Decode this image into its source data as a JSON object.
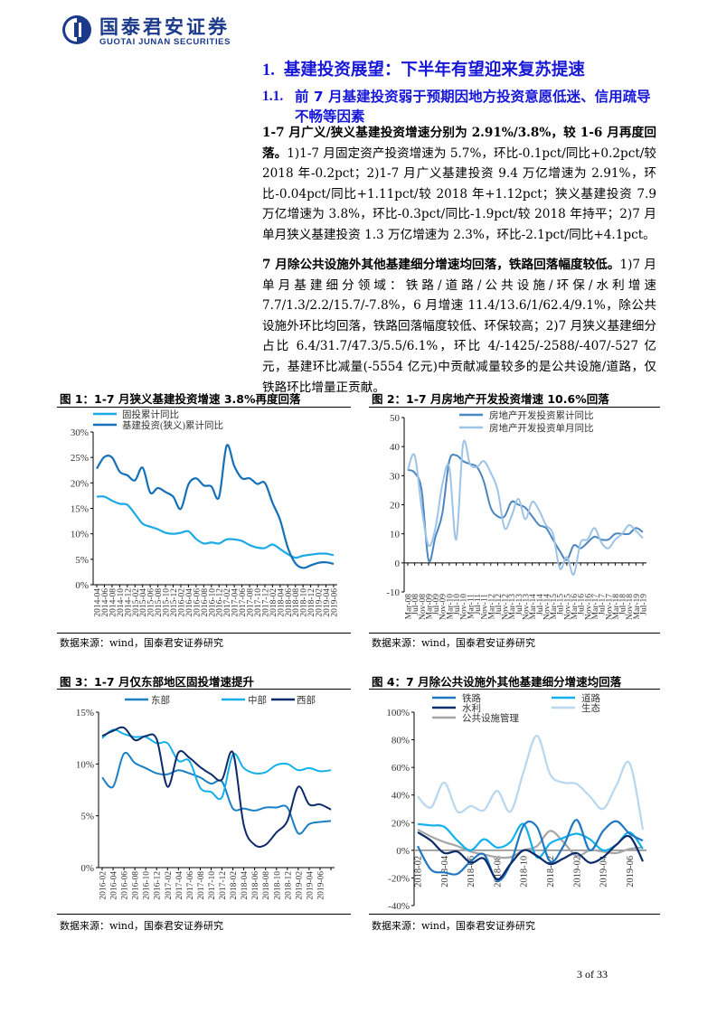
{
  "header": {
    "logo_cn": "国泰君安证券",
    "logo_en": "GUOTAI JUNAN SECURITIES",
    "brand_color": "#1b3a8c"
  },
  "section": {
    "number": "1.",
    "title": "基建投资展望：下半年有望迎来复苏提速"
  },
  "subsection": {
    "number": "1.1.",
    "title": "前 7 月基建投资弱于预期因地方投资意愿低迷、信用疏导不畅等因素"
  },
  "paragraphs": [
    {
      "lead": "1-7 月广义/狭义基建投资增速分别为 2.91%/3.8%，较 1-6 月再度回落。",
      "body": "1)1-7 月固定资产投资增速为 5.7%，环比-0.1pct/同比+0.2pct/较 2018 年-0.2pct；2)1-7 月广义基建投资 9.4 万亿增速为 2.91%，环比-0.04pct/同比+1.11pct/较 2018 年+1.12pct；狭义基建投资 7.9 万亿增速为 3.8%，环比-0.3pct/同比-1.9pct/较 2018 年持平；2)7 月单月狭义基建投资 1.3 万亿增速为 2.3%，环比-2.1pct/同比+4.1pct。"
    },
    {
      "lead": "7 月除公共设施外其他基建细分增速均回落，铁路回落幅度较低。",
      "body": "1)7 月单月基建细分领域：铁路/道路/公共设施/环保/水利增速 7.7/1.3/2.2/15.7/-7.8%，6 月增速 11.4/13.6/1/62.4/9.1%，除公共设施外环比均回落，铁路回落幅度较低、环保较高；2)7 月狭义基建细分占比 6.4/31.7/47.3/5.5/6.1%，环比 4/-1425/-2588/-407/-527 亿元，基建环比减量(-5554 亿元)中贡献减量较多的是公共设施/道路，仅铁路环比增量正贡献。"
    }
  ],
  "chart_data": [
    {
      "type": "line",
      "title": "图 1：1-7 月狭义基建投资增速 3.8%再度回落",
      "source": "数据来源：wind，国泰君安证券研究",
      "x": [
        "2014-04",
        "2014-06",
        "2014-08",
        "2014-10",
        "2014-12",
        "2015-02",
        "2015-04",
        "2015-06",
        "2015-08",
        "2015-10",
        "2015-12",
        "2016-02",
        "2016-04",
        "2016-06",
        "2016-08",
        "2016-10",
        "2016-12",
        "2017-02",
        "2017-04",
        "2017-06",
        "2017-08",
        "2017-10",
        "2017-12",
        "2018-02",
        "2018-04",
        "2018-06",
        "2018-08",
        "2018-10",
        "2018-12",
        "2019-02",
        "2019-04",
        "2019-06"
      ],
      "tick_labels": [
        "2014-04",
        "2014-06",
        "2014-08",
        "2014-10",
        "2014-12",
        "2015-02",
        "2015-04",
        "2015-06",
        "2015-08",
        "2015-10",
        "2015-12",
        "2016-02",
        "2016-04",
        "2016-06",
        "2016-08",
        "2016-10",
        "2016-12",
        "2017-02",
        "2017-04",
        "2017-06",
        "2017-08",
        "2017-10",
        "2017-12",
        "2018-02",
        "2018-04",
        "2018-06",
        "2018-08",
        "2018-10",
        "2018-12",
        "2019-02",
        "2019-04",
        "2019-06"
      ],
      "ylim": [
        0,
        30
      ],
      "yticks": [
        0,
        5,
        10,
        15,
        20,
        25,
        30
      ],
      "yunit": "%",
      "legend": "top",
      "series": [
        {
          "name": "固投累计同比",
          "color": "#1ca9e6",
          "values": [
            17.3,
            17.3,
            16.5,
            15.9,
            15.7,
            13.9,
            12.0,
            11.4,
            10.9,
            10.2,
            10.0,
            10.2,
            10.5,
            9.0,
            8.1,
            8.3,
            8.1,
            8.9,
            8.9,
            8.6,
            7.8,
            7.3,
            7.2,
            7.9,
            7.0,
            6.0,
            5.3,
            5.7,
            5.9,
            6.1,
            6.1,
            5.8
          ]
        },
        {
          "name": "基建投资(狭义)累计同比",
          "color": "#1470b8",
          "values": [
            22.8,
            25.1,
            25.0,
            22.2,
            21.5,
            20.5,
            23.0,
            18.1,
            19.0,
            18.2,
            17.3,
            14.9,
            19.7,
            20.9,
            19.5,
            19.3,
            17.2,
            27.3,
            23.3,
            20.9,
            20.9,
            19.8,
            20.0,
            16.1,
            12.7,
            7.3,
            4.2,
            3.3,
            3.8,
            4.3,
            4.4,
            4.1
          ]
        }
      ]
    },
    {
      "type": "line",
      "title": "图 2：1-7 月房地产开发投资增速 10.6%回落",
      "source": "数据来源：wind，国泰君安证券研究",
      "x": [
        "Mar-08",
        "Jul-08",
        "Nov-08",
        "Mar-09",
        "Jul-09",
        "Nov-09",
        "Mar-10",
        "Jul-10",
        "Nov-10",
        "Mar-11",
        "Jul-11",
        "Nov-11",
        "Mar-12",
        "Jul-12",
        "Nov-12",
        "Mar-13",
        "Jul-13",
        "Nov-13",
        "Mar-14",
        "Jul-14",
        "Nov-14",
        "Mar-15",
        "Jul-15",
        "Nov-15",
        "Mar-16",
        "Jul-16",
        "Nov-16",
        "Mar-17",
        "Jul-17",
        "Nov-17",
        "Mar-18",
        "Jul-18",
        "Nov-18",
        "Mar-19",
        "Jul-19"
      ],
      "tick_labels": [
        "Mar-08",
        "Jul-08",
        "Nov-08",
        "Mar-09",
        "Jul-09",
        "Nov-09",
        "Mar-10",
        "Jul-10",
        "Nov-10",
        "Mar-11",
        "Jul-11",
        "Nov-11",
        "Mar-12",
        "Jul-12",
        "Nov-12",
        "Mar-13",
        "Jul-13",
        "Nov-13",
        "Mar-14",
        "Jul-14",
        "Nov-14",
        "Mar-15",
        "Jul-15",
        "Nov-15",
        "Mar-16",
        "Jul-16",
        "Nov-16",
        "Mar-17",
        "Jul-17",
        "Nov-17",
        "Mar-18",
        "Jul-18",
        "Nov-18",
        "Mar-19",
        "Jul-19"
      ],
      "ylim": [
        -10,
        50
      ],
      "yticks": [
        -10,
        0,
        10,
        20,
        30,
        40,
        50
      ],
      "yunit": "",
      "legend": "top",
      "series": [
        {
          "name": "房地产开发投资累计同比",
          "color": "#4a86c0",
          "values": [
            32,
            31,
            25,
            1,
            9,
            17,
            35,
            37,
            35,
            34,
            33,
            28,
            19,
            16,
            16,
            21,
            20,
            19,
            16,
            13,
            12,
            8,
            4,
            1,
            6,
            5,
            7,
            9,
            8,
            8,
            10,
            10,
            10,
            12,
            10.6
          ]
        },
        {
          "name": "房地产开发投资单月同比",
          "color": "#9ec3e6",
          "values": [
            32,
            37,
            19,
            6,
            12,
            27,
            33,
            8,
            41,
            34,
            33,
            35,
            31,
            25,
            12,
            16,
            22,
            15,
            21,
            18,
            13,
            10,
            -2,
            2,
            -4,
            7,
            8,
            12,
            7,
            5,
            8,
            10,
            13,
            11,
            8.5
          ]
        }
      ]
    },
    {
      "type": "line",
      "title": "图 3：1-7 月仅东部地区固投增速提升",
      "source": "数据来源：wind，国泰君安证券研究",
      "x": [
        "2016-02",
        "2016-04",
        "2016-06",
        "2016-08",
        "2016-10",
        "2016-12",
        "2017-02",
        "2017-04",
        "2017-06",
        "2017-08",
        "2017-10",
        "2017-12",
        "2018-02",
        "2018-04",
        "2018-06",
        "2018-08",
        "2018-10",
        "2018-12",
        "2019-02",
        "2019-04",
        "2019-06",
        "2019-07"
      ],
      "tick_labels": [
        "2016-02",
        "2016-04",
        "2016-06",
        "2016-08",
        "2016-10",
        "2016-12",
        "2017-02",
        "2017-04",
        "2017-06",
        "2017-08",
        "2017-10",
        "2017-12",
        "2018-02",
        "2018-04",
        "2018-06",
        "2018-08",
        "2018-10",
        "2018-12",
        "2019-02",
        "2019-04",
        "2019-06"
      ],
      "ylim": [
        0,
        15
      ],
      "yticks": [
        0,
        5,
        10,
        15
      ],
      "yunit": "%",
      "legend": "top",
      "series": [
        {
          "name": "东部",
          "color": "#1b7fc4",
          "values": [
            8.7,
            7.8,
            11.0,
            10.1,
            9.6,
            9.1,
            9.0,
            9.4,
            9.1,
            8.7,
            8.1,
            8.3,
            5.7,
            5.7,
            5.5,
            5.8,
            5.8,
            5.8,
            3.3,
            4.2,
            4.4,
            4.5
          ]
        },
        {
          "name": "中部",
          "color": "#14b0ea",
          "values": [
            12.5,
            13.3,
            12.9,
            12.6,
            12.6,
            12.0,
            12.0,
            10.3,
            10.3,
            7.7,
            7.3,
            6.8,
            10.9,
            9.6,
            9.1,
            9.2,
            9.9,
            10.0,
            9.4,
            9.6,
            9.3,
            9.4
          ]
        },
        {
          "name": "西部",
          "color": "#0d2a6b",
          "values": [
            12.7,
            13.2,
            13.5,
            12.3,
            12.7,
            12.4,
            7.8,
            11.1,
            10.6,
            9.7,
            9.0,
            8.5,
            11.1,
            4.1,
            2.2,
            2.2,
            3.4,
            4.5,
            7.8,
            6.1,
            6.1,
            5.6
          ]
        }
      ]
    },
    {
      "type": "line",
      "title": "图 4：7 月除公共设施外其他基建细分增速均回落",
      "source": "数据来源：wind，国泰君安证券研究",
      "x": [
        "2018-02",
        "2018-03",
        "2018-04",
        "2018-05",
        "2018-06",
        "2018-07",
        "2018-08",
        "2018-09",
        "2018-10",
        "2018-11",
        "2018-12",
        "2019-01",
        "2019-02",
        "2019-03",
        "2019-04",
        "2019-05",
        "2019-06",
        "2019-07"
      ],
      "tick_labels": [
        "2018-02",
        "",
        "2018-04",
        "",
        "2018-06",
        "",
        "2018-08",
        "",
        "2018-10",
        "",
        "2018-12",
        "",
        "2019-02",
        "",
        "2019-04",
        "",
        "2019-06",
        ""
      ],
      "ylim": [
        -40,
        100
      ],
      "yticks": [
        -40,
        -20,
        0,
        20,
        40,
        60,
        80,
        100
      ],
      "yunit": "%",
      "legend": "top",
      "series": [
        {
          "name": "铁路",
          "color": "#1f78c1",
          "values": [
            3,
            -14,
            -16,
            -17,
            -8,
            -3,
            -22,
            -10,
            18,
            17,
            -8,
            3,
            22,
            0,
            14,
            21,
            12,
            7
          ]
        },
        {
          "name": "道路",
          "color": "#12b0ec",
          "values": [
            19,
            18,
            17,
            7,
            0,
            8,
            2,
            6,
            19,
            -5,
            5,
            9,
            12,
            8,
            0,
            4,
            13,
            1
          ]
        },
        {
          "name": "水利",
          "color": "#0b2b6a",
          "values": [
            13,
            7,
            -2,
            -1,
            -9,
            -6,
            -21,
            -10,
            0,
            -4,
            -10,
            -6,
            -2,
            -9,
            -5,
            4,
            10,
            -8
          ]
        },
        {
          "name": "生态",
          "color": "#b8d7ee",
          "values": [
            39,
            31,
            49,
            28,
            32,
            29,
            43,
            28,
            57,
            83,
            55,
            49,
            48,
            39,
            30,
            47,
            63,
            15
          ]
        },
        {
          "name": "公共设施管理",
          "color": "#a6a6a6",
          "values": [
            15,
            10,
            6,
            3,
            -1,
            -3,
            -5,
            -5,
            0,
            3,
            14,
            6,
            -4,
            0,
            -1,
            -2,
            1,
            2
          ]
        }
      ]
    }
  ],
  "footer": {
    "page": "3 of 33"
  }
}
